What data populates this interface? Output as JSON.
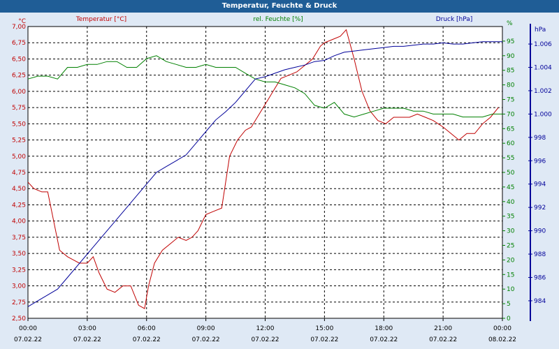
{
  "window": {
    "title": "Temperatur, Feuchte & Druck"
  },
  "colors": {
    "temperature": "#c00000",
    "humidity": "#008000",
    "pressure": "#000099",
    "background": "#dfe9f5",
    "titlebar": "#1f5d96"
  },
  "chart_data": {
    "type": "line",
    "title": "Temperatur, Feuchte & Druck",
    "grid": true,
    "x_ticks": [
      {
        "time": "00:00",
        "date": "07.02.22"
      },
      {
        "time": "03:00",
        "date": "07.02.22"
      },
      {
        "time": "06:00",
        "date": "07.02.22"
      },
      {
        "time": "09:00",
        "date": "07.02.22"
      },
      {
        "time": "12:00",
        "date": "07.02.22"
      },
      {
        "time": "15:00",
        "date": "07.02.22"
      },
      {
        "time": "18:00",
        "date": "07.02.22"
      },
      {
        "time": "21:00",
        "date": "07.02.22"
      },
      {
        "time": "00:00",
        "date": "08.02.22"
      }
    ],
    "x_hours_range": [
      0,
      24
    ],
    "axes": {
      "temperature": {
        "label": "Temperatur [°C]",
        "unit": "°C",
        "range": [
          2.5,
          7.0
        ],
        "ticks": [
          "2,50",
          "2,75",
          "3,00",
          "3,25",
          "3,50",
          "3,75",
          "4,00",
          "4,25",
          "4,50",
          "4,75",
          "5,00",
          "5,25",
          "5,50",
          "5,75",
          "6,00",
          "6,25",
          "6,50",
          "6,75",
          "7,00"
        ]
      },
      "humidity": {
        "label": "rel. Feuchte [%]",
        "unit": "%",
        "range": [
          0,
          100
        ],
        "ticks": [
          "0",
          "5",
          "10",
          "15",
          "20",
          "25",
          "30",
          "35",
          "40",
          "45",
          "50",
          "55",
          "60",
          "65",
          "70",
          "75",
          "80",
          "85",
          "90",
          "95"
        ]
      },
      "pressure": {
        "label": "Druck [hPa]",
        "unit": "hPa",
        "range": [
          982.5,
          1007.5
        ],
        "ticks": [
          "984",
          "986",
          "988",
          "990",
          "992",
          "994",
          "996",
          "998",
          "1.000",
          "1.002",
          "1.004",
          "1.006"
        ]
      }
    },
    "series": [
      {
        "name": "Temperatur [°C]",
        "axis": "temperature",
        "x": [
          0,
          0.3,
          0.7,
          1.0,
          1.3,
          1.6,
          2.0,
          2.3,
          2.6,
          3.0,
          3.3,
          3.6,
          4.0,
          4.4,
          4.8,
          5.2,
          5.6,
          5.9,
          6.1,
          6.4,
          6.8,
          7.2,
          7.6,
          8.0,
          8.3,
          8.6,
          9.0,
          9.4,
          9.8,
          10.2,
          10.6,
          11.0,
          11.3,
          11.6,
          12.0,
          12.4,
          12.8,
          13.2,
          13.6,
          14.0,
          14.4,
          14.8,
          15.0,
          15.4,
          15.8,
          16.1,
          16.5,
          16.9,
          17.3,
          17.7,
          18.1,
          18.5,
          18.9,
          19.3,
          19.7,
          20.1,
          20.5,
          21.0,
          21.4,
          21.8,
          22.2,
          22.6,
          23.0,
          23.4,
          23.8
        ],
        "values": [
          4.6,
          4.5,
          4.45,
          4.45,
          4.0,
          3.55,
          3.45,
          3.4,
          3.35,
          3.35,
          3.45,
          3.2,
          2.95,
          2.9,
          3.0,
          3.0,
          2.7,
          2.65,
          3.0,
          3.35,
          3.55,
          3.65,
          3.75,
          3.7,
          3.75,
          3.85,
          4.1,
          4.15,
          4.2,
          5.0,
          5.25,
          5.4,
          5.45,
          5.6,
          5.8,
          6.0,
          6.2,
          6.25,
          6.3,
          6.4,
          6.5,
          6.7,
          6.75,
          6.8,
          6.85,
          6.95,
          6.5,
          6.0,
          5.7,
          5.55,
          5.5,
          5.6,
          5.6,
          5.6,
          5.65,
          5.6,
          5.55,
          5.45,
          5.35,
          5.25,
          5.35,
          5.35,
          5.5,
          5.6,
          5.75
        ]
      },
      {
        "name": "rel. Feuchte [%]",
        "axis": "humidity",
        "x": [
          0,
          0.5,
          1.0,
          1.5,
          2.0,
          2.5,
          3.0,
          3.5,
          4.0,
          4.5,
          5.0,
          5.5,
          6.0,
          6.5,
          7.0,
          7.5,
          8.0,
          8.5,
          9.0,
          9.5,
          10.0,
          10.5,
          11.0,
          11.5,
          12.0,
          12.5,
          13.0,
          13.5,
          14.0,
          14.5,
          15.0,
          15.5,
          16.0,
          16.5,
          17.0,
          17.5,
          18.0,
          18.5,
          19.0,
          19.5,
          20.0,
          20.5,
          21.0,
          21.5,
          22.0,
          22.5,
          23.0,
          23.5,
          24.0
        ],
        "values": [
          82,
          83,
          83,
          82,
          86,
          86,
          87,
          87,
          88,
          88,
          86,
          86,
          89,
          90,
          88,
          87,
          86,
          86,
          87,
          86,
          86,
          86,
          84,
          82,
          81,
          81,
          80,
          79,
          77,
          73,
          72,
          74,
          70,
          69,
          70,
          71,
          72,
          72,
          72,
          71,
          71,
          70,
          70,
          70,
          69,
          69,
          69,
          70,
          70
        ]
      },
      {
        "name": "Druck [hPa]",
        "axis": "pressure",
        "x": [
          0,
          0.5,
          1.0,
          1.5,
          2.0,
          2.5,
          3.0,
          3.5,
          4.0,
          4.5,
          5.0,
          5.5,
          6.0,
          6.5,
          7.0,
          7.5,
          8.0,
          8.5,
          9.0,
          9.5,
          10.0,
          10.5,
          11.0,
          11.5,
          12.0,
          12.5,
          13.0,
          13.5,
          14.0,
          14.5,
          15.0,
          15.5,
          16.0,
          16.5,
          17.0,
          17.5,
          18.0,
          18.5,
          19.0,
          19.5,
          20.0,
          20.5,
          21.0,
          21.5,
          22.0,
          22.5,
          23.0,
          23.5,
          24.0
        ],
        "values": [
          983.5,
          984,
          984.5,
          985,
          986,
          987,
          988,
          989,
          990,
          991,
          992,
          993,
          994,
          995,
          995.5,
          996,
          996.5,
          997.5,
          998.5,
          999.5,
          1000.2,
          1001,
          1002,
          1003,
          1003.2,
          1003.5,
          1003.8,
          1004,
          1004.2,
          1004.5,
          1004.6,
          1005,
          1005.3,
          1005.4,
          1005.5,
          1005.6,
          1005.7,
          1005.8,
          1005.8,
          1005.9,
          1006,
          1006,
          1006.1,
          1006,
          1006,
          1006.1,
          1006.2,
          1006.2,
          1006.2
        ]
      }
    ]
  }
}
